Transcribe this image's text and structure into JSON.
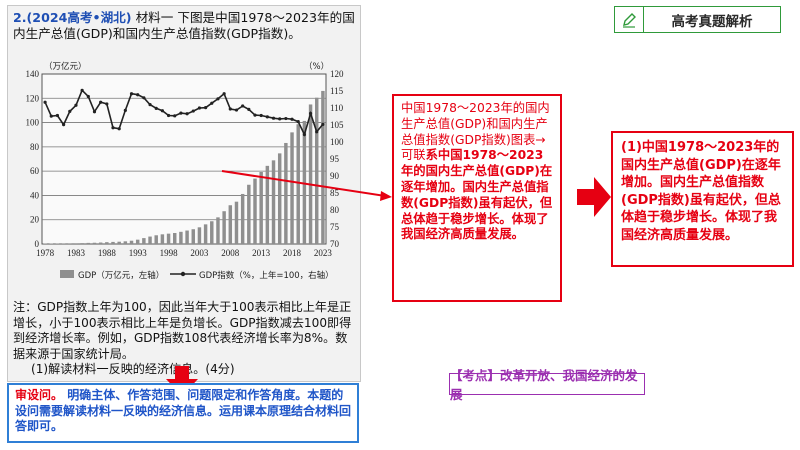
{
  "question": {
    "number": "2.(2024高考•湖北)",
    "intro": "材料一  下图是中国1978～2023年的国内生产总值(GDP)和国内生产总值指数(GDP指数)。"
  },
  "chart_data": {
    "type": "bar+line",
    "left_axis_unit": "（万亿元）",
    "right_axis_unit": "（%）",
    "left_ticks": [
      "0",
      "20",
      "40",
      "60",
      "80",
      "100",
      "120",
      "140"
    ],
    "right_ticks": [
      "70",
      "75",
      "80",
      "85",
      "90",
      "95",
      "100",
      "105",
      "110",
      "115",
      "120"
    ],
    "x_ticks": [
      "1978",
      "1983",
      "1988",
      "1993",
      "1998",
      "2003",
      "2008",
      "2013",
      "2018",
      "2023"
    ],
    "years": [
      1978,
      1979,
      1980,
      1981,
      1982,
      1983,
      1984,
      1985,
      1986,
      1987,
      1988,
      1989,
      1990,
      1991,
      1992,
      1993,
      1994,
      1995,
      1996,
      1997,
      1998,
      1999,
      2000,
      2001,
      2002,
      2003,
      2004,
      2005,
      2006,
      2007,
      2008,
      2009,
      2010,
      2011,
      2012,
      2013,
      2014,
      2015,
      2016,
      2017,
      2018,
      2019,
      2020,
      2021,
      2022,
      2023
    ],
    "series": [
      {
        "name": "GDP（万亿元，左轴）",
        "axis": "left",
        "values": [
          0.37,
          0.41,
          0.46,
          0.49,
          0.54,
          0.6,
          0.73,
          0.91,
          1.04,
          1.22,
          1.51,
          1.72,
          1.89,
          2.2,
          2.72,
          3.57,
          4.86,
          6.13,
          7.18,
          7.97,
          8.52,
          9.06,
          10.03,
          11.09,
          12.17,
          13.74,
          16.18,
          18.73,
          21.94,
          27.0,
          31.92,
          34.85,
          41.21,
          48.79,
          53.86,
          59.3,
          64.36,
          68.89,
          74.64,
          83.2,
          91.93,
          98.65,
          101.36,
          114.92,
          120.47,
          126.06
        ]
      },
      {
        "name": "GDP指数（%，上年=100，右轴）",
        "axis": "right",
        "values": [
          111.7,
          107.6,
          107.8,
          105.1,
          109.0,
          110.8,
          115.2,
          113.4,
          108.9,
          111.7,
          111.2,
          104.2,
          103.9,
          109.3,
          114.2,
          113.9,
          113.0,
          111.0,
          109.9,
          109.2,
          107.8,
          107.7,
          108.5,
          108.3,
          109.1,
          110.0,
          110.1,
          111.4,
          112.7,
          114.2,
          109.7,
          109.4,
          110.6,
          109.6,
          107.9,
          107.8,
          107.4,
          107.0,
          106.8,
          106.9,
          106.7,
          106.0,
          102.2,
          108.4,
          103.0,
          105.2
        ]
      }
    ],
    "ylim_left": [
      0,
      140
    ],
    "ylim_right": [
      70,
      120
    ]
  },
  "legend": {
    "gdp": "GDP（万亿元，左轴）",
    "index": "GDP指数（%，上年=100，右轴）"
  },
  "note": "注：GDP指数上年为100，因此当年大于100表示相比上年是正增长，小于100表示相比上年是负增长。GDP指数减去100即得到经济增长率。例如，GDP指数108代表经济增长率为8%。数据来源于国家统计局。",
  "sub_question": "(1)解读材料一反映的经济信息。(4分)",
  "analysis": {
    "lead": "审设问。",
    "body": "明确主体、作答范围、问题限定和作答角度。本题的设问需要解读材料一反映的经济信息。运用课本原理结合材料回答即可。"
  },
  "middle_box": {
    "plain": "中国1978～2023年的国内生产总值(GDP)和国内生产总值指数(GDP指数)图表→可联",
    "bold": "系中国1978～2023年的国内生产总值(GDP)在逐年增加。国内生产总值指数(GDP指数)虽有起伏，但总体趋于稳步增长。体现了我国经济高质量发展。"
  },
  "right_box": "(1)中国1978～2023年的国内生产总值(GDP)在逐年增加。国内生产总值指数(GDP指数)虽有起伏，但总体趋于稳步增长。体现了我国经济高质量发展。",
  "tag_label": "高考真题解析",
  "kaodian": "【考点】改革开放、我国经济的发展",
  "colors": {
    "red": "#e60012",
    "blue": "#1f55c8",
    "purple": "#9b2fb0",
    "green": "#2f9a3a"
  }
}
